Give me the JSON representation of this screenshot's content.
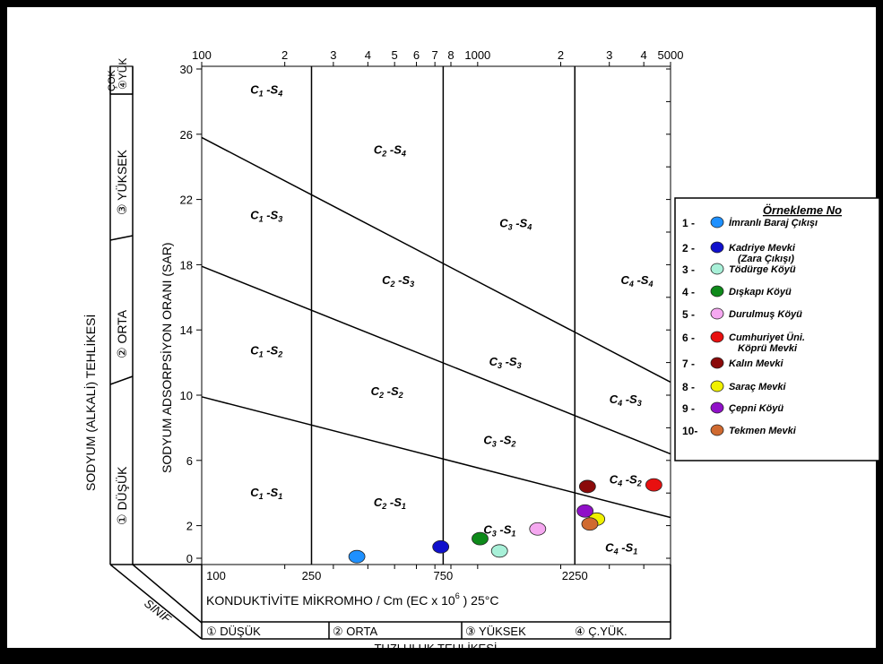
{
  "chart_data": {
    "type": "scatter",
    "title": "",
    "xlabel": "KONDUKTİVİTE MİKROMHO / Cm (EC x 10",
    "xlabel_exp": "6",
    "xlabel_tail": " ) 25°C",
    "ylabel": "SODYUM ADSORPSİYON ORANI (SAR)",
    "outer_ylabel": "SODYUM (ALKALİ) TEHLİKESİ",
    "salinity_title": "TUZLULUK TEHLİKESİ",
    "class_label": "SINIF",
    "x_scale": "log",
    "xlim": [
      100,
      5000
    ],
    "ylim": [
      0,
      31
    ],
    "top_ticks": [
      "100",
      "2",
      "3",
      "4",
      "5",
      "6",
      "7",
      "8",
      "1000",
      "2",
      "3",
      "4",
      "5000"
    ],
    "bottom_ticks": [
      "100",
      "250",
      "750",
      "2250"
    ],
    "y_ticks": [
      "0",
      "2",
      "6",
      "10",
      "14",
      "18",
      "22",
      "26",
      "30"
    ],
    "sodium_classes": [
      {
        "num": "①",
        "label": "DÜŞÜK"
      },
      {
        "num": "②",
        "label": "ORTA"
      },
      {
        "num": "③",
        "label": "YÜKSEK"
      },
      {
        "num": "④",
        "label": "YÜK"
      },
      {
        "num": "",
        "label": "ÇOK"
      }
    ],
    "salinity_classes": [
      {
        "num": "①",
        "label": "DÜŞÜK"
      },
      {
        "num": "②",
        "label": "ORTA"
      },
      {
        "num": "③",
        "label": "YÜKSEK"
      },
      {
        "num": "④",
        "label": "Ç.YÜK."
      }
    ],
    "zones": [
      {
        "c": "1",
        "s": "4",
        "x": 150,
        "y": 28.5
      },
      {
        "c": "2",
        "s": "4",
        "x": 420,
        "y": 24.8
      },
      {
        "c": "3",
        "s": "4",
        "x": 1200,
        "y": 20.3
      },
      {
        "c": "4",
        "s": "4",
        "x": 3300,
        "y": 16.8
      },
      {
        "c": "1",
        "s": "3",
        "x": 150,
        "y": 20.8
      },
      {
        "c": "2",
        "s": "3",
        "x": 450,
        "y": 16.8
      },
      {
        "c": "3",
        "s": "3",
        "x": 1100,
        "y": 11.8
      },
      {
        "c": "4",
        "s": "3",
        "x": 3000,
        "y": 9.5
      },
      {
        "c": "1",
        "s": "2",
        "x": 150,
        "y": 12.5
      },
      {
        "c": "2",
        "s": "2",
        "x": 410,
        "y": 10.0
      },
      {
        "c": "3",
        "s": "2",
        "x": 1050,
        "y": 7.0
      },
      {
        "c": "4",
        "s": "2",
        "x": 3000,
        "y": 4.6
      },
      {
        "c": "1",
        "s": "1",
        "x": 150,
        "y": 3.8
      },
      {
        "c": "2",
        "s": "1",
        "x": 420,
        "y": 3.2
      },
      {
        "c": "3",
        "s": "1",
        "x": 1050,
        "y": 1.5
      },
      {
        "c": "4",
        "s": "1",
        "x": 2900,
        "y": 0.4
      }
    ],
    "points": [
      {
        "no": 1,
        "x": 365,
        "y": 0.1,
        "color": "#1E90FF"
      },
      {
        "no": 2,
        "x": 735,
        "y": 0.7,
        "color": "#1010CC"
      },
      {
        "no": 3,
        "x": 1200,
        "y": 0.45,
        "color": "#A8F0D8"
      },
      {
        "no": 4,
        "x": 1020,
        "y": 1.2,
        "color": "#0E8A1A"
      },
      {
        "no": 5,
        "x": 1650,
        "y": 1.8,
        "color": "#F5A8F0"
      },
      {
        "no": 6,
        "x": 4350,
        "y": 4.5,
        "color": "#E81010"
      },
      {
        "no": 7,
        "x": 2500,
        "y": 4.4,
        "color": "#8B0A0A"
      },
      {
        "no": 8,
        "x": 2700,
        "y": 2.4,
        "color": "#F0F000"
      },
      {
        "no": 9,
        "x": 2450,
        "y": 2.9,
        "color": "#9010C8"
      },
      {
        "no": 10,
        "x": 2550,
        "y": 2.1,
        "color": "#D06A30"
      }
    ]
  },
  "legend": {
    "title": "Örnekleme No",
    "items": [
      {
        "num": "1 -",
        "lines": [
          "İmranlı Baraj Çıkışı"
        ],
        "color": "#1E90FF"
      },
      {
        "num": "2 -",
        "lines": [
          "Kadriye Mevki",
          "(Zara Çıkışı)"
        ],
        "color": "#1010CC"
      },
      {
        "num": "3 -",
        "lines": [
          "Tödürge Köyü"
        ],
        "color": "#A8F0D8"
      },
      {
        "num": "4 -",
        "lines": [
          "Dışkapı Köyü"
        ],
        "color": "#0E8A1A"
      },
      {
        "num": "5 -",
        "lines": [
          "Durulmuş Köyü"
        ],
        "color": "#F5A8F0"
      },
      {
        "num": "6 -",
        "lines": [
          "Cumhuriyet Üni.",
          "Köprü Mevki"
        ],
        "color": "#E81010"
      },
      {
        "num": "7 -",
        "lines": [
          "Kalın Mevki"
        ],
        "color": "#8B0A0A"
      },
      {
        "num": "8 -",
        "lines": [
          "Saraç Mevki"
        ],
        "color": "#F0F000"
      },
      {
        "num": "9 -",
        "lines": [
          "Çepni Köyü"
        ],
        "color": "#9010C8"
      },
      {
        "num": "10-",
        "lines": [
          "Tekmen Mevki"
        ],
        "color": "#D06A30"
      }
    ]
  }
}
